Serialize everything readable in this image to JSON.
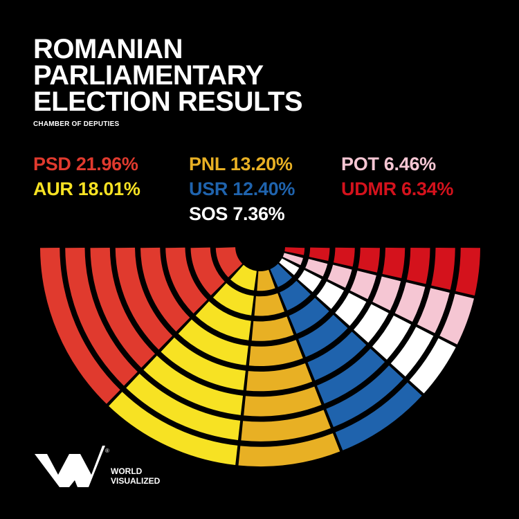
{
  "title_lines": [
    "ROMANIAN",
    "PARLIAMENTARY",
    "ELECTION RESULTS"
  ],
  "subtitle": "CHAMBER OF DEPUTIES",
  "results": [
    {
      "party": "PSD",
      "text": "PSD 21.96%",
      "color": "#e03a2e"
    },
    {
      "party": "AUR",
      "text": "AUR 18.01%",
      "color": "#f7e223"
    },
    {
      "party": "PNL",
      "text": "PNL 13.20%",
      "color": "#e8b024"
    },
    {
      "party": "USR",
      "text": "USR 12.40%",
      "color": "#1f63ad"
    },
    {
      "party": "SOS",
      "text": "SOS 7.36%",
      "color": "#ffffff"
    },
    {
      "party": "POT",
      "text": "POT 6.46%",
      "color": "#f5c6d3"
    },
    {
      "party": "UDMR",
      "text": "UDMR 6.34%",
      "color": "#d4121c"
    }
  ],
  "brand": {
    "line1": "WORLD",
    "line2": "VISUALIZED",
    "mark": "®"
  },
  "chart_data": {
    "type": "parliament",
    "series": [
      {
        "name": "PSD",
        "value": 21.96,
        "color": "#e03a2e"
      },
      {
        "name": "AUR",
        "value": 18.01,
        "color": "#f7e223"
      },
      {
        "name": "PNL",
        "value": 13.2,
        "color": "#e8b024"
      },
      {
        "name": "USR",
        "value": 12.4,
        "color": "#1f63ad"
      },
      {
        "name": "SOS",
        "value": 7.36,
        "color": "#ffffff"
      },
      {
        "name": "POT",
        "value": 6.46,
        "color": "#f5c6d3"
      },
      {
        "name": "UDMR",
        "value": 6.34,
        "color": "#d4121c"
      }
    ],
    "rows": 8
  }
}
